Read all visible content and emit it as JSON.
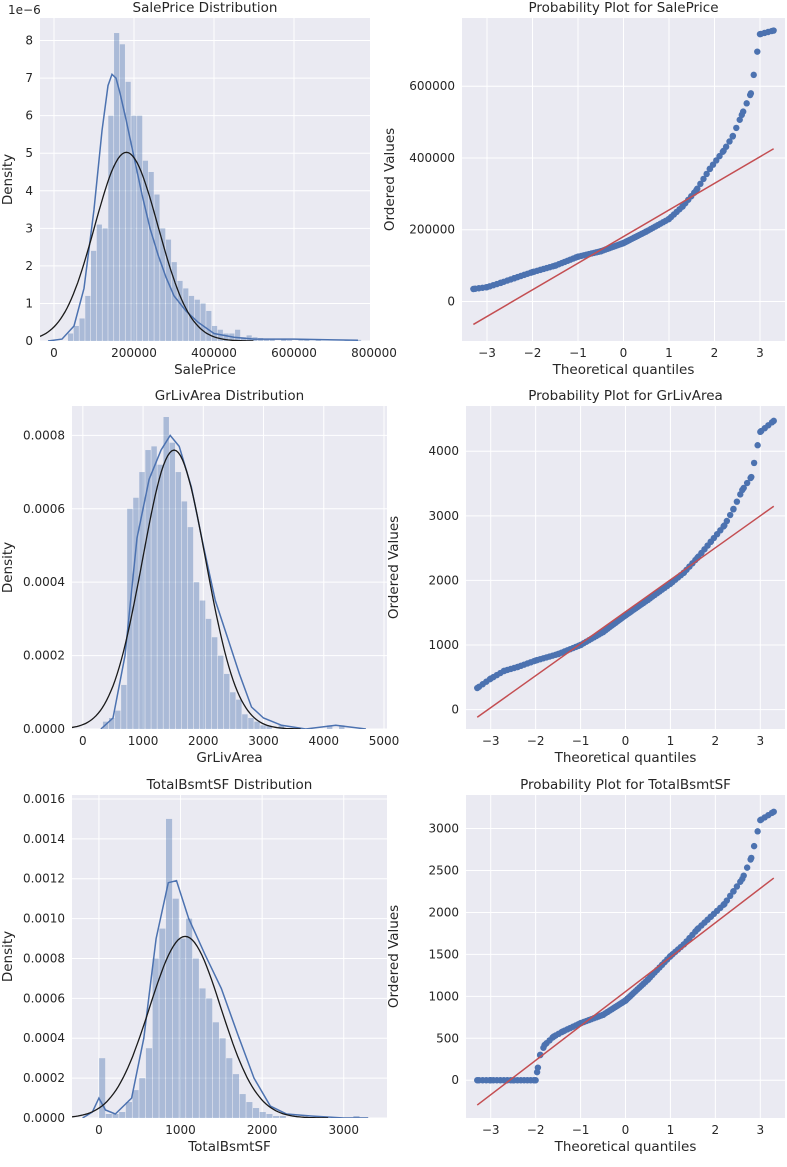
{
  "colors": {
    "background": "#eaeaf2",
    "hist": "#4c72b0",
    "kde": "#4c72b0",
    "normal_fit": "#1a1a1a",
    "qq_points": "#4c72b0",
    "qq_line": "#c44e52"
  },
  "chart_data": [
    {
      "type": "bar",
      "title": "SalePrice Distribution",
      "xlabel": "SalePrice",
      "ylabel": "Density",
      "offset_text": "1e−6",
      "xlim": [
        -35000,
        790000
      ],
      "ylim": [
        0,
        8.6
      ],
      "xticks": [
        0,
        200000,
        400000,
        600000,
        800000
      ],
      "yticks": [
        0,
        1,
        2,
        3,
        4,
        5,
        6,
        7,
        8
      ],
      "bins": {
        "start": 34900,
        "width": 14403,
        "values": [
          0.2,
          0.4,
          0.6,
          1.2,
          2.4,
          3.1,
          3.0,
          6.0,
          8.2,
          7.9,
          6.9,
          6.0,
          6.0,
          4.8,
          4.5,
          3.9,
          3.0,
          2.7,
          2.1,
          1.6,
          1.4,
          1.2,
          1.1,
          1.0,
          0.8,
          0.4,
          0.3,
          0.2,
          0.2,
          0.3,
          0.1,
          0.15,
          0.1,
          0.08,
          0.05,
          0.05,
          0.0,
          0.05,
          0.02,
          0.0,
          0.02,
          0.03,
          0.0,
          0.02,
          0.0,
          0.0,
          0.0,
          0.0,
          0.02,
          0.0,
          0.03,
          0.0
        ]
      },
      "kde": {
        "x": [
          -15000,
          20000,
          50000,
          75000,
          100000,
          120000,
          135000,
          145000,
          155000,
          165000,
          180000,
          200000,
          220000,
          240000,
          260000,
          280000,
          300000,
          330000,
          360000,
          400000,
          450000,
          500000,
          600000,
          700000,
          760000
        ],
        "y": [
          0.0,
          0.05,
          0.4,
          1.4,
          3.5,
          5.6,
          6.8,
          7.1,
          7.0,
          6.6,
          5.9,
          4.9,
          3.9,
          3.0,
          2.3,
          1.7,
          1.2,
          0.8,
          0.5,
          0.2,
          0.1,
          0.05,
          0.05,
          0.03,
          0.02
        ]
      },
      "normal_fit": {
        "mean": 180921,
        "std": 79415
      }
    },
    {
      "type": "scatter",
      "title": "Probability Plot for SalePrice",
      "xlabel": "Theoretical quantiles",
      "ylabel": "Ordered Values",
      "xlim": [
        -3.55,
        3.55
      ],
      "ylim": [
        -110000,
        790000
      ],
      "xticks": [
        -3,
        -2,
        -1,
        0,
        1,
        2,
        3
      ],
      "yticks": [
        0,
        200000,
        400000,
        600000
      ],
      "fit_line": {
        "slope": 74160,
        "intercept": 180921,
        "x": [
          -3.3,
          3.3
        ]
      },
      "quantile_curve": {
        "x": [
          -3.3,
          -3.0,
          -2.7,
          -2.4,
          -2.0,
          -1.5,
          -1.0,
          -0.5,
          0.0,
          0.5,
          1.0,
          1.3,
          1.6,
          1.9,
          2.2,
          2.4,
          2.6,
          2.8,
          3.0,
          3.3
        ],
        "y": [
          34900,
          40000,
          52000,
          65000,
          82000,
          100000,
          125000,
          140000,
          163000,
          195000,
          230000,
          265000,
          310000,
          370000,
          420000,
          460000,
          520000,
          580000,
          745000,
          755000
        ]
      }
    },
    {
      "type": "bar",
      "title": "GrLivArea Distribution",
      "xlabel": "GrLivArea",
      "ylabel": "Density",
      "xlim": [
        -180,
        5050
      ],
      "ylim": [
        0,
        0.00088
      ],
      "xticks": [
        0,
        1000,
        2000,
        3000,
        4000,
        5000
      ],
      "yticks": [
        0,
        0.0002,
        0.0004,
        0.0006,
        0.0008
      ],
      "ytick_labels": [
        "0.0000",
        "0.0002",
        "0.0004",
        "0.0006",
        "0.0008"
      ],
      "bins": {
        "start": 334,
        "width": 100.5,
        "values": [
          2e-05,
          3e-05,
          5e-05,
          0.00012,
          0.0006,
          0.00063,
          0.0007,
          0.00076,
          0.00077,
          0.00072,
          0.00085,
          0.00078,
          0.0007,
          0.00062,
          0.00055,
          0.0004,
          0.00035,
          0.0003,
          0.00025,
          0.0002,
          0.00015,
          0.0001,
          8e-05,
          4e-05,
          3e-05,
          2e-05,
          1e-05,
          1e-05,
          0.0,
          1e-05,
          0.0,
          0.0,
          0.0,
          0.0,
          0.0,
          0.0,
          0.0,
          1e-05,
          0.0,
          1e-05,
          0.0
        ]
      },
      "kde": {
        "x": [
          300,
          500,
          700,
          900,
          1100,
          1300,
          1450,
          1600,
          1800,
          2000,
          2200,
          2400,
          2600,
          2800,
          3000,
          3300,
          3700,
          4200,
          4700
        ],
        "y": [
          0.0,
          3e-05,
          0.0002,
          0.00052,
          0.00068,
          0.00076,
          0.0008,
          0.00077,
          0.00066,
          0.0005,
          0.00035,
          0.00025,
          0.00015,
          6e-05,
          3e-05,
          1e-05,
          0.0,
          1e-05,
          0.0
        ]
      },
      "normal_fit": {
        "mean": 1515,
        "std": 525
      }
    },
    {
      "type": "scatter",
      "title": "Probability Plot for GrLivArea",
      "xlabel": "Theoretical quantiles",
      "ylabel": "Ordered Values",
      "xlim": [
        -3.55,
        3.55
      ],
      "ylim": [
        -300,
        4700
      ],
      "xticks": [
        -3,
        -2,
        -1,
        0,
        1,
        2,
        3
      ],
      "yticks": [
        0,
        1000,
        2000,
        3000,
        4000
      ],
      "fit_line": {
        "slope": 495,
        "intercept": 1515,
        "x": [
          -3.3,
          3.3
        ]
      },
      "quantile_curve": {
        "x": [
          -3.3,
          -3.0,
          -2.7,
          -2.4,
          -2.0,
          -1.5,
          -1.0,
          -0.5,
          0.0,
          0.5,
          1.0,
          1.3,
          1.6,
          1.9,
          2.2,
          2.4,
          2.6,
          2.8,
          3.0,
          3.3
        ],
        "y": [
          334,
          480,
          600,
          660,
          760,
          860,
          1000,
          1200,
          1460,
          1700,
          1950,
          2120,
          2350,
          2600,
          2850,
          3100,
          3400,
          3600,
          4300,
          4470
        ]
      }
    },
    {
      "type": "bar",
      "title": "TotalBsmtSF Distribution",
      "xlabel": "TotalBsmtSF",
      "ylabel": "Density",
      "xlim": [
        -330,
        3530
      ],
      "ylim": [
        0,
        0.00162
      ],
      "xticks": [
        0,
        1000,
        2000,
        3000
      ],
      "yticks": [
        0,
        0.0002,
        0.0004,
        0.0006,
        0.0008,
        0.001,
        0.0012,
        0.0014,
        0.0016
      ],
      "ytick_labels": [
        "0.0000",
        "0.0002",
        "0.0004",
        "0.0006",
        "0.0008",
        "0.0010",
        "0.0012",
        "0.0014",
        "0.0016"
      ],
      "bins": {
        "start": -80,
        "width": 82,
        "values": [
          0.0,
          0.0003,
          2e-05,
          2e-05,
          3e-05,
          8e-05,
          0.00014,
          0.0002,
          0.00035,
          0.0008,
          0.00095,
          0.0015,
          0.0011,
          0.0009,
          0.001,
          0.0008,
          0.00065,
          0.0006,
          0.00048,
          0.0004,
          0.0003,
          0.00022,
          0.00012,
          8e-05,
          5e-05,
          3e-05,
          2e-05,
          1e-05,
          1e-05,
          0.0,
          0.0,
          0.0,
          0.0,
          0.0,
          0.0,
          0.0,
          0.0,
          0.0,
          0.0,
          1e-05,
          0.0
        ]
      },
      "kde": {
        "x": [
          -200,
          -80,
          0,
          80,
          200,
          400,
          550,
          700,
          850,
          950,
          1100,
          1300,
          1500,
          1700,
          1900,
          2100,
          2300,
          2600,
          3000,
          3300
        ],
        "y": [
          0.0,
          3e-05,
          0.0001,
          4e-05,
          2e-05,
          0.0001,
          0.0004,
          0.0009,
          0.00118,
          0.00119,
          0.001,
          0.00082,
          0.00065,
          0.00042,
          0.0002,
          6e-05,
          2e-05,
          1e-05,
          0.0,
          0.0
        ]
      },
      "normal_fit": {
        "mean": 1057,
        "std": 438
      }
    },
    {
      "type": "scatter",
      "title": "Probability Plot for TotalBsmtSF",
      "xlabel": "Theoretical quantiles",
      "ylabel": "Ordered Values",
      "xlim": [
        -3.55,
        3.55
      ],
      "ylim": [
        -450,
        3400
      ],
      "xticks": [
        -3,
        -2,
        -1,
        0,
        1,
        2,
        3
      ],
      "yticks": [
        0,
        500,
        1000,
        1500,
        2000,
        2500,
        3000
      ],
      "fit_line": {
        "slope": 410,
        "intercept": 1057,
        "x": [
          -3.3,
          3.3
        ]
      },
      "quantile_curve": {
        "x": [
          -3.3,
          -3.0,
          -2.5,
          -2.0,
          -1.95,
          -1.9,
          -1.8,
          -1.6,
          -1.4,
          -1.0,
          -0.5,
          0.0,
          0.5,
          1.0,
          1.3,
          1.6,
          1.9,
          2.2,
          2.4,
          2.6,
          2.8,
          3.0,
          3.3
        ],
        "y": [
          0,
          0,
          0,
          0,
          150,
          300,
          420,
          520,
          580,
          680,
          780,
          950,
          1200,
          1480,
          1620,
          1800,
          1950,
          2100,
          2250,
          2400,
          2650,
          3100,
          3200
        ]
      }
    }
  ]
}
